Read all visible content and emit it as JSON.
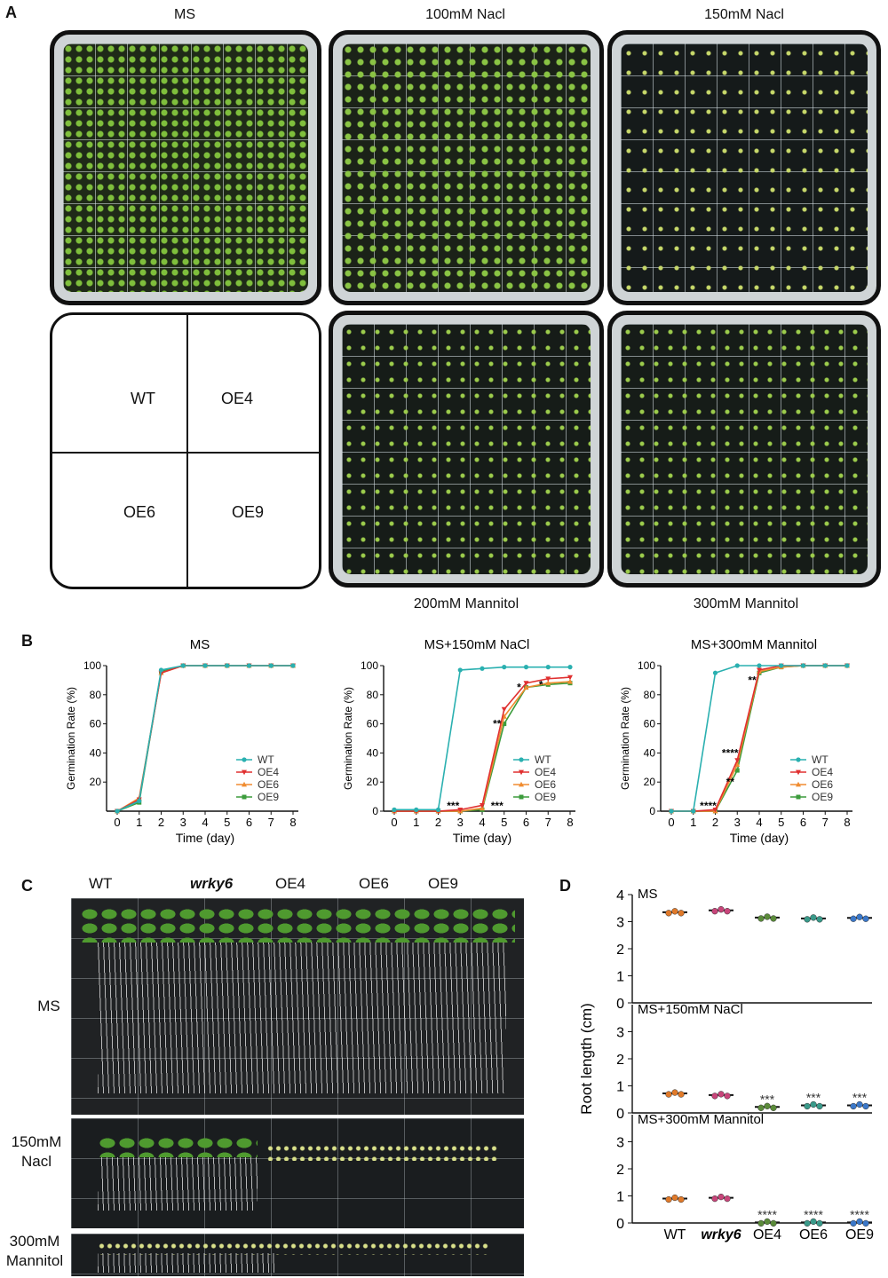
{
  "panelA": {
    "letter": "A",
    "plate_labels": [
      "MS",
      "100mM Nacl",
      "150mM Nacl"
    ],
    "bottom_labels": [
      "200mM Mannitol",
      "300mM Mannitol"
    ],
    "layout": {
      "top_left": "WT",
      "top_right": "OE4",
      "bottom_left": "OE6",
      "bottom_right": "OE9"
    }
  },
  "panelB": {
    "letter": "B"
  },
  "panelC": {
    "letter": "C",
    "col_labels": [
      "WT",
      "wrky6",
      "OE4",
      "OE6",
      "OE9"
    ],
    "row_labels": [
      "MS",
      "150mM\nNacl",
      "300mM\nMannitol"
    ]
  },
  "panelD": {
    "letter": "D"
  },
  "chart_data": [
    {
      "type": "line",
      "title": "MS",
      "xlabel": "Time (day)",
      "ylabel": "Germination Rate (%)",
      "x": [
        0,
        1,
        2,
        3,
        4,
        5,
        6,
        7,
        8
      ],
      "xlim": [
        0,
        8
      ],
      "ylim": [
        0,
        100
      ],
      "yticks": [
        20,
        40,
        60,
        80,
        100
      ],
      "legend": "bottom-right",
      "series": [
        {
          "name": "WT",
          "color": "#2ab0b0",
          "marker": "circle",
          "values": [
            0,
            7,
            97,
            100,
            100,
            100,
            100,
            100,
            100
          ]
        },
        {
          "name": "OE4",
          "color": "#e03030",
          "marker": "triangle-down",
          "values": [
            0,
            8,
            95,
            100,
            100,
            100,
            100,
            100,
            100
          ]
        },
        {
          "name": "OE6",
          "color": "#f08c30",
          "marker": "triangle-up",
          "values": [
            0,
            9,
            95,
            100,
            100,
            100,
            100,
            100,
            100
          ]
        },
        {
          "name": "OE9",
          "color": "#3c9c3c",
          "marker": "square",
          "values": [
            0,
            6,
            96,
            100,
            100,
            100,
            100,
            100,
            100
          ]
        }
      ],
      "annotations": []
    },
    {
      "type": "line",
      "title": "MS+150mM NaCl",
      "xlabel": "Time (day)",
      "ylabel": "Germination Rate (%)",
      "x": [
        0,
        1,
        2,
        3,
        4,
        5,
        6,
        7,
        8
      ],
      "xlim": [
        0,
        8
      ],
      "ylim": [
        0,
        100
      ],
      "yticks": [
        0,
        20,
        40,
        60,
        80,
        100
      ],
      "legend": "bottom-right",
      "series": [
        {
          "name": "WT",
          "color": "#2ab0b0",
          "marker": "circle",
          "values": [
            1,
            1,
            1,
            97,
            98,
            99,
            99,
            99,
            99
          ]
        },
        {
          "name": "OE4",
          "color": "#e03030",
          "marker": "triangle-down",
          "values": [
            0,
            0,
            0,
            1,
            4,
            70,
            88,
            91,
            92
          ]
        },
        {
          "name": "OE6",
          "color": "#f08c30",
          "marker": "triangle-up",
          "values": [
            0,
            0,
            0,
            0,
            2,
            65,
            85,
            88,
            89
          ]
        },
        {
          "name": "OE9",
          "color": "#3c9c3c",
          "marker": "square",
          "values": [
            0,
            0,
            0,
            0,
            1,
            60,
            85,
            87,
            88
          ]
        }
      ],
      "annotations": [
        {
          "x": 3,
          "y": 0,
          "text": "***"
        },
        {
          "x": 5,
          "y": 0,
          "text": "***"
        },
        {
          "x": 5,
          "y": 60,
          "text": "**"
        },
        {
          "x": 6,
          "y": 85,
          "text": "*"
        },
        {
          "x": 7,
          "y": 87,
          "text": "*"
        }
      ]
    },
    {
      "type": "line",
      "title": "MS+300mM Mannitol",
      "xlabel": "Time (day)",
      "ylabel": "Germination Rate (%)",
      "x": [
        0,
        1,
        2,
        3,
        4,
        5,
        6,
        7,
        8
      ],
      "xlim": [
        0,
        8
      ],
      "ylim": [
        0,
        100
      ],
      "yticks": [
        0,
        20,
        40,
        60,
        80,
        100
      ],
      "legend": "bottom-right",
      "series": [
        {
          "name": "WT",
          "color": "#2ab0b0",
          "marker": "circle",
          "values": [
            0,
            0,
            95,
            100,
            100,
            100,
            100,
            100,
            100
          ]
        },
        {
          "name": "OE4",
          "color": "#e03030",
          "marker": "triangle-down",
          "values": [
            0,
            0,
            1,
            35,
            97,
            100,
            100,
            100,
            100
          ]
        },
        {
          "name": "OE6",
          "color": "#f08c30",
          "marker": "triangle-up",
          "values": [
            0,
            0,
            0,
            32,
            96,
            99,
            100,
            100,
            100
          ]
        },
        {
          "name": "OE9",
          "color": "#3c9c3c",
          "marker": "square",
          "values": [
            0,
            0,
            0,
            28,
            95,
            99,
            100,
            100,
            100
          ]
        }
      ],
      "annotations": [
        {
          "x": 2,
          "y": 0,
          "text": "****"
        },
        {
          "x": 3,
          "y": 40,
          "text": "****"
        },
        {
          "x": 3,
          "y": 20,
          "text": "**"
        },
        {
          "x": 4,
          "y": 90,
          "text": "**"
        }
      ]
    },
    {
      "type": "scatter",
      "ylabel": "Root length (cm)",
      "categories": [
        "WT",
        "wrky6",
        "OE4",
        "OE6",
        "OE9"
      ],
      "panels": [
        {
          "title": "MS",
          "ylim": [
            0,
            4
          ],
          "yticks": [
            0,
            1,
            2,
            3,
            4
          ],
          "means": [
            3.35,
            3.42,
            3.15,
            3.12,
            3.14
          ],
          "stars": [
            "",
            "",
            "",
            "",
            ""
          ]
        },
        {
          "title": "MS+150mM NaCl",
          "ylim": [
            0,
            4
          ],
          "yticks": [
            0,
            1,
            2,
            3
          ],
          "means": [
            0.72,
            0.66,
            0.22,
            0.28,
            0.28
          ],
          "stars": [
            "",
            "",
            "***",
            "***",
            "***"
          ]
        },
        {
          "title": "MS+300mM Mannitol",
          "ylim": [
            0,
            4
          ],
          "yticks": [
            0,
            1,
            2,
            3
          ],
          "means": [
            0.9,
            0.93,
            0.02,
            0.02,
            0.02
          ],
          "stars": [
            "",
            "",
            "****",
            "****",
            "****"
          ]
        }
      ],
      "colors": [
        "#e07a2a",
        "#c8457a",
        "#5b8b3a",
        "#3a9a8a",
        "#3b78c9"
      ]
    }
  ]
}
